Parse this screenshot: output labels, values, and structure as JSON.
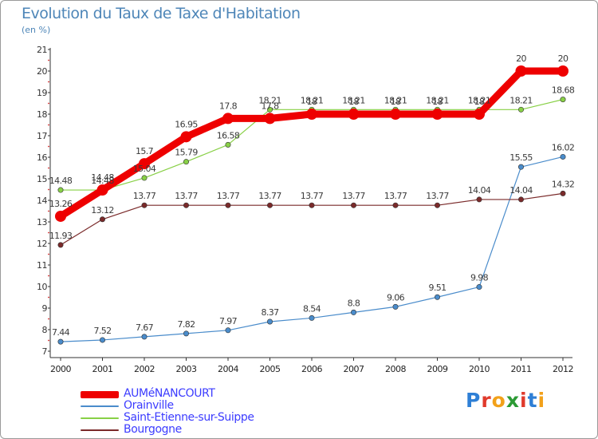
{
  "title": "Evolution du Taux de Taxe d'Habitation",
  "unit": "(en %)",
  "logo": {
    "text": "Proxiti",
    "letter_colors": [
      "#2e7fd6",
      "#e03a2c",
      "#f2a11a",
      "#2b9a34",
      "#e03a2c",
      "#2e7fd6",
      "#f2a11a"
    ]
  },
  "chart_data": {
    "type": "line",
    "x": [
      "2000",
      "2001",
      "2002",
      "2003",
      "2004",
      "2005",
      "2006",
      "2007",
      "2008",
      "2009",
      "2010",
      "2011",
      "2012"
    ],
    "ylim": [
      7,
      21
    ],
    "yticks": [
      7,
      8,
      9,
      10,
      11,
      12,
      13,
      14,
      15,
      16,
      17,
      18,
      19,
      20,
      21
    ],
    "grid": false,
    "legend_position": "bottom-left",
    "series": [
      {
        "name": "AUMéNANCOURT",
        "color": "#ee0000",
        "values": [
          13.26,
          14.48,
          15.7,
          16.95,
          17.8,
          17.8,
          18,
          18,
          18,
          18,
          18,
          20,
          20
        ],
        "labels": [
          "13.26",
          "14.48",
          "15.7",
          "16.95",
          "17.8",
          "17.8",
          "18",
          "18",
          "18",
          "18",
          "18",
          "20",
          "20"
        ]
      },
      {
        "name": "Orainville",
        "color": "#4a8ccb",
        "values": [
          7.44,
          7.52,
          7.67,
          7.82,
          7.97,
          8.37,
          8.54,
          8.8,
          9.06,
          9.51,
          9.98,
          15.55,
          16.02
        ],
        "labels": [
          "7.44",
          "7.52",
          "7.67",
          "7.82",
          "7.97",
          "8.37",
          "8.54",
          "8.8",
          "9.06",
          "9.51",
          "9.98",
          "15.55",
          "16.02"
        ]
      },
      {
        "name": "Saint-Etienne-sur-Suippe",
        "color": "#88d046",
        "values": [
          14.48,
          14.48,
          15.04,
          15.79,
          16.58,
          18.21,
          18.21,
          18.21,
          18.21,
          18.21,
          18.21,
          18.21,
          18.68
        ],
        "labels": [
          "14.48",
          "14.48",
          "15.04",
          "15.79",
          "16.58",
          "18.21",
          "18.21",
          "18.21",
          "18.21",
          "18.21",
          "18.21",
          "18.21",
          "18.68"
        ]
      },
      {
        "name": "Bourgogne",
        "color": "#7a2a2a",
        "values": [
          11.93,
          13.12,
          13.77,
          13.77,
          13.77,
          13.77,
          13.77,
          13.77,
          13.77,
          13.77,
          14.04,
          14.04,
          14.32
        ],
        "labels": [
          "11.93",
          "13.12",
          "13.77",
          "13.77",
          "13.77",
          "13.77",
          "13.77",
          "13.77",
          "13.77",
          "13.77",
          "14.04",
          "14.04",
          "14.32"
        ]
      }
    ]
  }
}
